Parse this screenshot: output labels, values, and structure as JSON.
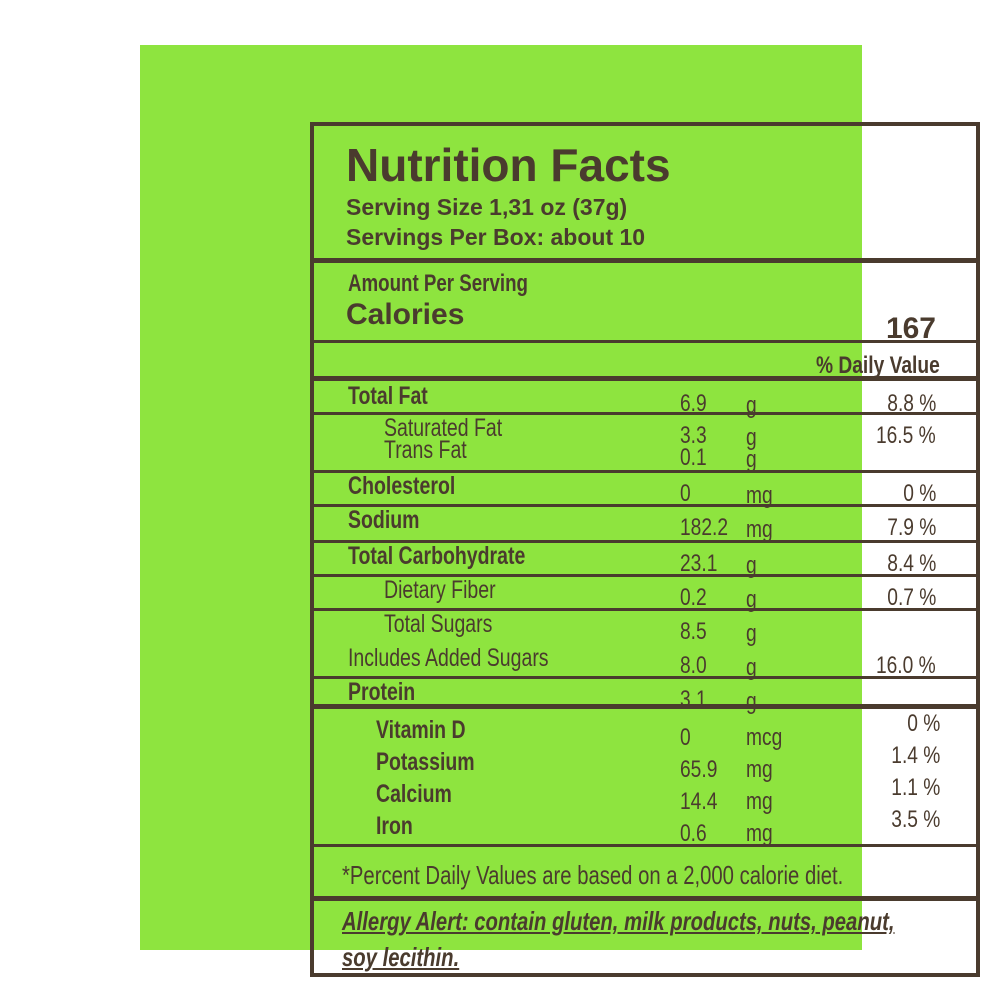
{
  "title": "Nutrition Facts",
  "serving_size": "Serving Size 1,31 oz (37g)",
  "servings_per_box": "Servings Per Box: about 10",
  "amount_per_serving": "Amount Per Serving",
  "calories_label": "Calories",
  "calories_value": "167",
  "daily_value_header": "% Daily Value",
  "nutrients": [
    {
      "name": "Total Fat",
      "amount": "6.9",
      "unit": "g",
      "dv": "8.8 %",
      "indent": false,
      "bold": true
    },
    {
      "name": "Saturated Fat",
      "amount": "3.3",
      "unit": "g",
      "dv": "16.5 %",
      "indent": true,
      "bold": false
    },
    {
      "name": "Trans Fat",
      "amount": "0.1",
      "unit": "g",
      "dv": "",
      "indent": true,
      "bold": false
    },
    {
      "name": "Cholesterol",
      "amount": "0",
      "unit": "mg",
      "dv": "0 %",
      "indent": false,
      "bold": true
    },
    {
      "name": "Sodium",
      "amount": "182.2",
      "unit": "mg",
      "dv": "7.9 %",
      "indent": false,
      "bold": true
    },
    {
      "name": "Total Carbohydrate",
      "amount": "23.1",
      "unit": "g",
      "dv": "8.4 %",
      "indent": false,
      "bold": true
    },
    {
      "name": "Dietary Fiber",
      "amount": "0.2",
      "unit": "g",
      "dv": "0.7 %",
      "indent": true,
      "bold": false
    },
    {
      "name": "Total Sugars",
      "amount": "8.5",
      "unit": "g",
      "dv": "",
      "indent": true,
      "bold": false
    },
    {
      "name": "Includes Added Sugars",
      "amount": "8.0",
      "unit": "g",
      "dv": "16.0 %",
      "indent": false,
      "bold": false
    },
    {
      "name": "Protein",
      "amount": "3.1",
      "unit": "g",
      "dv": "",
      "indent": false,
      "bold": true
    }
  ],
  "vitamins": [
    {
      "name": "Vitamin D",
      "amount": "0",
      "unit": "mcg",
      "dv": "0 %"
    },
    {
      "name": "Potassium",
      "amount": "65.9",
      "unit": "mg",
      "dv": "1.4 %"
    },
    {
      "name": "Calcium",
      "amount": "14.4",
      "unit": "mg",
      "dv": "1.1 %"
    },
    {
      "name": "Iron",
      "amount": "0.6",
      "unit": "mg",
      "dv": "3.5 %"
    }
  ],
  "footnote": "*Percent Daily Values are based on a 2,000 calorie diet.",
  "allergy_line1": "Allergy Alert: contain gluten, milk products, nuts, peanut,",
  "allergy_line2": "soy lecithin.",
  "colors": {
    "background": "#8ee43f",
    "ink": "#4a3b2e"
  }
}
